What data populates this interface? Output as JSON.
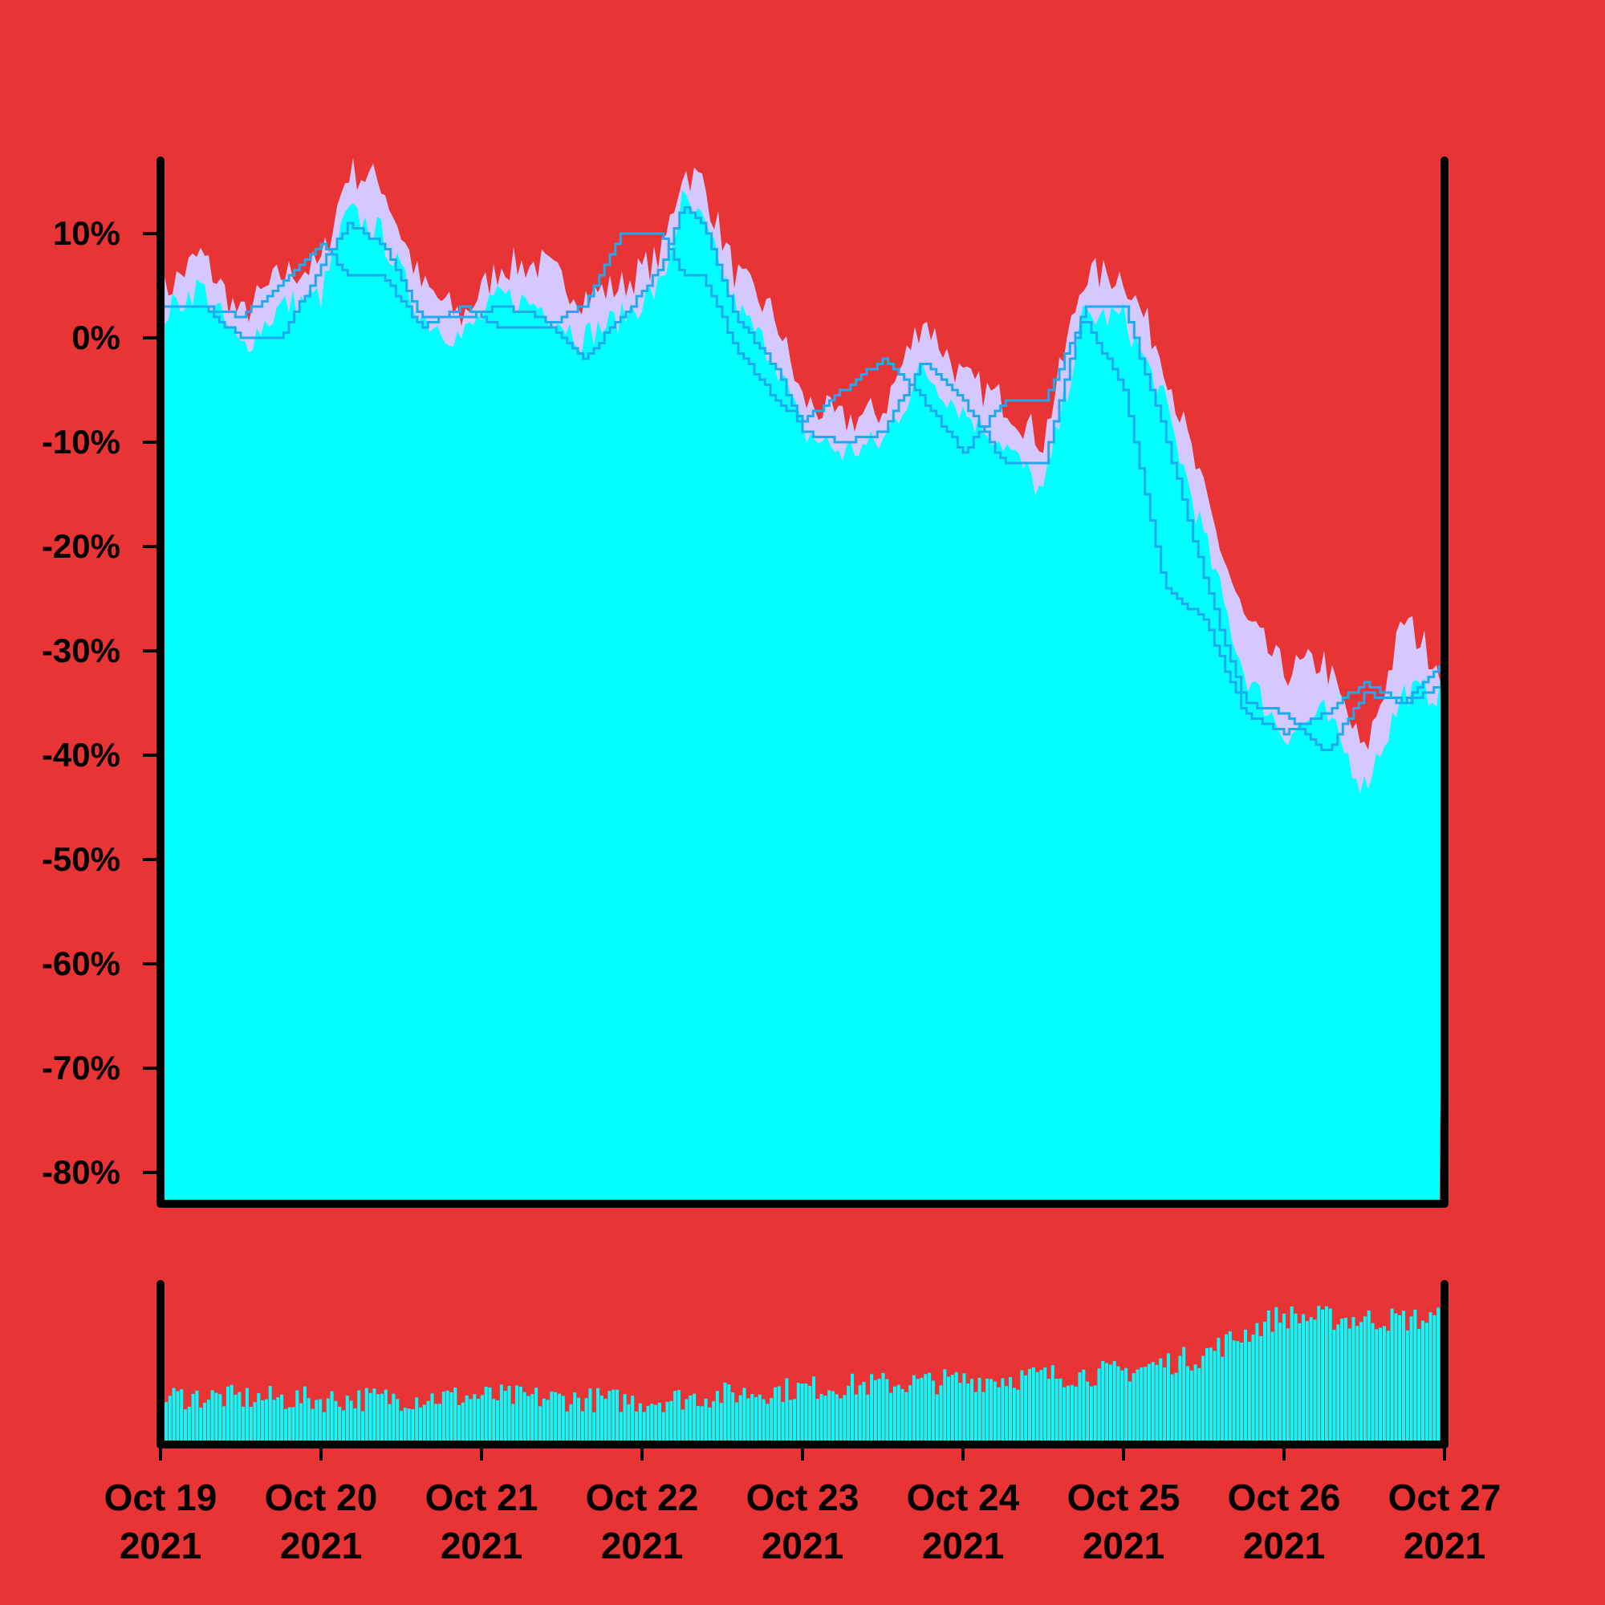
{
  "chart_data": [
    {
      "type": "area",
      "role": "price",
      "ylim": [
        -0.83,
        0.17
      ],
      "yticks": [
        0.1,
        0.0,
        -0.1,
        -0.2,
        -0.3,
        -0.4,
        -0.5,
        -0.6,
        -0.7,
        -0.8
      ],
      "ytick_labels": [
        "10%",
        "0%",
        "-10%",
        "-20%",
        "-30%",
        "-40%",
        "-50%",
        "-60%",
        "-70%",
        "-80%"
      ],
      "x_range": [
        "2021-10-19",
        "2021-10-27"
      ],
      "xtick_labels": [
        {
          "line1": "Oct 19",
          "line2": "2021"
        },
        {
          "line1": "Oct 20",
          "line2": "2021"
        },
        {
          "line1": "Oct 21",
          "line2": "2021"
        },
        {
          "line1": "Oct 22",
          "line2": "2021"
        },
        {
          "line1": "Oct 23",
          "line2": "2021"
        },
        {
          "line1": "Oct 24",
          "line2": "2021"
        },
        {
          "line1": "Oct 25",
          "line2": "2021"
        },
        {
          "line1": "Oct 26",
          "line2": "2021"
        },
        {
          "line1": "Oct 27",
          "line2": "2021"
        }
      ],
      "grid": false,
      "series": [
        {
          "role": "high",
          "color": "#d5c8ff",
          "points": [
            [
              "2021-10-19T00:00",
              0.04
            ],
            [
              "2021-10-19T06:00",
              0.08
            ],
            [
              "2021-10-19T12:00",
              0.02
            ],
            [
              "2021-10-19T18:00",
              0.06
            ],
            [
              "2021-10-20T00:00",
              0.07
            ],
            [
              "2021-10-20T04:00",
              0.16
            ],
            [
              "2021-10-20T09:00",
              0.15
            ],
            [
              "2021-10-20T15:00",
              0.05
            ],
            [
              "2021-10-20T21:00",
              0.02
            ],
            [
              "2021-10-21T03:00",
              0.07
            ],
            [
              "2021-10-21T09:00",
              0.07
            ],
            [
              "2021-10-21T15:00",
              0.04
            ],
            [
              "2021-10-21T21:00",
              0.05
            ],
            [
              "2021-10-22T03:00",
              0.08
            ],
            [
              "2021-10-22T06:00",
              0.16
            ],
            [
              "2021-10-22T09:00",
              0.15
            ],
            [
              "2021-10-22T14:00",
              0.06
            ],
            [
              "2021-10-22T20:00",
              0.02
            ],
            [
              "2021-10-23T00:00",
              -0.06
            ],
            [
              "2021-10-23T06:00",
              -0.08
            ],
            [
              "2021-10-23T12:00",
              -0.07
            ],
            [
              "2021-10-23T18:00",
              0.02
            ],
            [
              "2021-10-24T00:00",
              -0.04
            ],
            [
              "2021-10-24T06:00",
              -0.06
            ],
            [
              "2021-10-24T12:00",
              -0.1
            ],
            [
              "2021-10-24T18:00",
              0.06
            ],
            [
              "2021-10-25T00:00",
              0.06
            ],
            [
              "2021-10-25T06:00",
              -0.02
            ],
            [
              "2021-10-25T12:00",
              -0.15
            ],
            [
              "2021-10-25T18:00",
              -0.27
            ],
            [
              "2021-10-26T00:00",
              -0.32
            ],
            [
              "2021-10-26T06:00",
              -0.31
            ],
            [
              "2021-10-26T12:00",
              -0.4
            ],
            [
              "2021-10-26T18:00",
              -0.27
            ],
            [
              "2021-10-27T00:00",
              -0.32
            ]
          ]
        },
        {
          "role": "close",
          "color": "#00ffff",
          "points": [
            [
              "2021-10-19T00:00",
              0.02
            ],
            [
              "2021-10-19T06:00",
              0.05
            ],
            [
              "2021-10-19T12:00",
              -0.01
            ],
            [
              "2021-10-19T18:00",
              0.03
            ],
            [
              "2021-10-20T00:00",
              0.04
            ],
            [
              "2021-10-20T04:00",
              0.12
            ],
            [
              "2021-10-20T09:00",
              0.1
            ],
            [
              "2021-10-20T15:00",
              0.02
            ],
            [
              "2021-10-20T21:00",
              0.0
            ],
            [
              "2021-10-21T03:00",
              0.04
            ],
            [
              "2021-10-21T09:00",
              0.03
            ],
            [
              "2021-10-21T15:00",
              0.0
            ],
            [
              "2021-10-21T21:00",
              0.02
            ],
            [
              "2021-10-22T03:00",
              0.05
            ],
            [
              "2021-10-22T06:00",
              0.13
            ],
            [
              "2021-10-22T09:00",
              0.11
            ],
            [
              "2021-10-22T14:00",
              0.03
            ],
            [
              "2021-10-22T20:00",
              -0.02
            ],
            [
              "2021-10-23T00:00",
              -0.09
            ],
            [
              "2021-10-23T06:00",
              -0.11
            ],
            [
              "2021-10-23T12:00",
              -0.1
            ],
            [
              "2021-10-23T18:00",
              -0.03
            ],
            [
              "2021-10-24T00:00",
              -0.07
            ],
            [
              "2021-10-24T06:00",
              -0.1
            ],
            [
              "2021-10-24T12:00",
              -0.15
            ],
            [
              "2021-10-24T18:00",
              0.02
            ],
            [
              "2021-10-25T00:00",
              0.02
            ],
            [
              "2021-10-25T06:00",
              -0.06
            ],
            [
              "2021-10-25T12:00",
              -0.19
            ],
            [
              "2021-10-25T18:00",
              -0.32
            ],
            [
              "2021-10-26T00:00",
              -0.38
            ],
            [
              "2021-10-26T06:00",
              -0.36
            ],
            [
              "2021-10-26T12:00",
              -0.43
            ],
            [
              "2021-10-26T18:00",
              -0.34
            ],
            [
              "2021-10-27T00:00",
              -0.34
            ]
          ]
        },
        {
          "role": "moving-average-fast",
          "color": "#1eaaf0",
          "points": [
            [
              "2021-10-19T00:00",
              0.03
            ],
            [
              "2021-10-19T06:00",
              0.03
            ],
            [
              "2021-10-19T12:00",
              0.0
            ],
            [
              "2021-10-19T18:00",
              0.0
            ],
            [
              "2021-10-20T00:00",
              0.07
            ],
            [
              "2021-10-20T04:00",
              0.11
            ],
            [
              "2021-10-20T09:00",
              0.09
            ],
            [
              "2021-10-20T15:00",
              0.02
            ],
            [
              "2021-10-20T21:00",
              0.02
            ],
            [
              "2021-10-21T03:00",
              0.03
            ],
            [
              "2021-10-21T09:00",
              0.02
            ],
            [
              "2021-10-21T15:00",
              -0.02
            ],
            [
              "2021-10-21T21:00",
              0.02
            ],
            [
              "2021-10-22T03:00",
              0.07
            ],
            [
              "2021-10-22T06:00",
              0.13
            ],
            [
              "2021-10-22T09:00",
              0.11
            ],
            [
              "2021-10-22T14:00",
              0.02
            ],
            [
              "2021-10-22T20:00",
              -0.03
            ],
            [
              "2021-10-23T00:00",
              -0.09
            ],
            [
              "2021-10-23T06:00",
              -0.1
            ],
            [
              "2021-10-23T12:00",
              -0.09
            ],
            [
              "2021-10-23T18:00",
              -0.02
            ],
            [
              "2021-10-24T00:00",
              -0.06
            ],
            [
              "2021-10-24T06:00",
              -0.12
            ],
            [
              "2021-10-24T12:00",
              -0.12
            ],
            [
              "2021-10-24T18:00",
              0.03
            ],
            [
              "2021-10-25T00:00",
              0.03
            ],
            [
              "2021-10-25T06:00",
              -0.09
            ],
            [
              "2021-10-25T12:00",
              -0.23
            ],
            [
              "2021-10-25T18:00",
              -0.35
            ],
            [
              "2021-10-26T00:00",
              -0.36
            ],
            [
              "2021-10-26T06:00",
              -0.4
            ],
            [
              "2021-10-26T12:00",
              -0.34
            ],
            [
              "2021-10-26T18:00",
              -0.35
            ],
            [
              "2021-10-27T00:00",
              -0.31
            ]
          ]
        },
        {
          "role": "moving-average-slow",
          "color": "#1eaaf0",
          "points": [
            [
              "2021-10-19T00:00",
              0.03
            ],
            [
              "2021-10-19T06:00",
              0.03
            ],
            [
              "2021-10-19T12:00",
              0.02
            ],
            [
              "2021-10-19T18:00",
              0.05
            ],
            [
              "2021-10-20T00:00",
              0.09
            ],
            [
              "2021-10-20T04:00",
              0.06
            ],
            [
              "2021-10-20T09:00",
              0.06
            ],
            [
              "2021-10-20T15:00",
              0.01
            ],
            [
              "2021-10-20T21:00",
              0.03
            ],
            [
              "2021-10-21T03:00",
              0.01
            ],
            [
              "2021-10-21T09:00",
              0.01
            ],
            [
              "2021-10-21T15:00",
              0.03
            ],
            [
              "2021-10-21T21:00",
              0.1
            ],
            [
              "2021-10-22T03:00",
              0.1
            ],
            [
              "2021-10-22T06:00",
              0.06
            ],
            [
              "2021-10-22T09:00",
              0.06
            ],
            [
              "2021-10-22T14:00",
              -0.01
            ],
            [
              "2021-10-22T20:00",
              -0.06
            ],
            [
              "2021-10-23T00:00",
              -0.08
            ],
            [
              "2021-10-23T06:00",
              -0.05
            ],
            [
              "2021-10-23T12:00",
              -0.02
            ],
            [
              "2021-10-23T18:00",
              -0.06
            ],
            [
              "2021-10-24T00:00",
              -0.11
            ],
            [
              "2021-10-24T06:00",
              -0.06
            ],
            [
              "2021-10-24T12:00",
              -0.06
            ],
            [
              "2021-10-24T18:00",
              0.02
            ],
            [
              "2021-10-25T00:00",
              -0.05
            ],
            [
              "2021-10-25T06:00",
              -0.24
            ],
            [
              "2021-10-25T12:00",
              -0.27
            ],
            [
              "2021-10-25T18:00",
              -0.36
            ],
            [
              "2021-10-26T00:00",
              -0.38
            ],
            [
              "2021-10-26T06:00",
              -0.36
            ],
            [
              "2021-10-26T12:00",
              -0.33
            ],
            [
              "2021-10-26T18:00",
              -0.35
            ],
            [
              "2021-10-27T00:00",
              -0.33
            ]
          ]
        }
      ]
    },
    {
      "type": "bar",
      "role": "volume",
      "color": "#00ffff",
      "ylim": [
        0,
        1
      ],
      "x_range": [
        "2021-10-19",
        "2021-10-27"
      ],
      "profile": [
        [
          "2021-10-19",
          0.3
        ],
        [
          "2021-10-20",
          0.28
        ],
        [
          "2021-10-21",
          0.3
        ],
        [
          "2021-10-22",
          0.27
        ],
        [
          "2021-10-23",
          0.35
        ],
        [
          "2021-10-24",
          0.4
        ],
        [
          "2021-10-25",
          0.45
        ],
        [
          "2021-10-25T12:00",
          0.55
        ],
        [
          "2021-10-26",
          0.8
        ],
        [
          "2021-10-26T12:00",
          0.78
        ],
        [
          "2021-10-27",
          0.78
        ]
      ],
      "noise": 0.08
    }
  ],
  "colors": {
    "background": "#e83434",
    "frame": "#000000",
    "price_fill": "#00ffff",
    "high_fill": "#d5c8ff",
    "ma_line": "#1eaaf0",
    "volume_bar": "#00ffff"
  }
}
